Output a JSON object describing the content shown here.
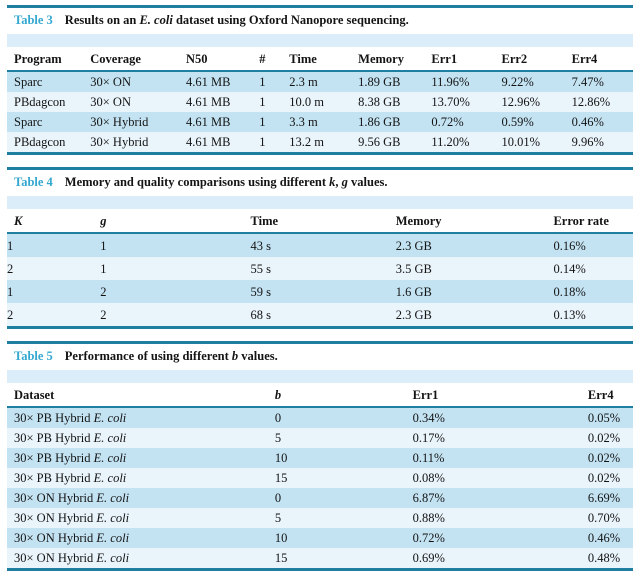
{
  "page": {
    "colors": {
      "rule": "#1e7fa0",
      "label_accent": "#35a8d0",
      "band_bg": "#daedf8",
      "row_blue": "#c3e3f3",
      "row_pale": "#eaf4fb",
      "text": "#141414",
      "page_bg": "#ffffff"
    }
  },
  "tables": [
    {
      "label": "Table 3",
      "caption": [
        {
          "t": "Results on an "
        },
        {
          "t": "E. coli",
          "i": true
        },
        {
          "t": " dataset using Oxford Nanopore sequencing."
        }
      ],
      "columns": [
        {
          "label": "Program",
          "width": 13.3
        },
        {
          "label": "Coverage",
          "width": 15.3
        },
        {
          "label": "N50",
          "width": 11.7
        },
        {
          "label": "#",
          "width": 4.8
        },
        {
          "label": "Time",
          "width": 11.0
        },
        {
          "label": "Memory",
          "width": 11.7
        },
        {
          "label": "Err1",
          "width": 11.2
        },
        {
          "label": "Err2",
          "width": 11.2
        },
        {
          "label": "Err4",
          "width": 9.8
        }
      ],
      "rows": [
        [
          "Sparc",
          "30× ON",
          "4.61 MB",
          "1",
          "2.3 m",
          "1.89 GB",
          "11.96%",
          "9.22%",
          "7.47%"
        ],
        [
          "PBdagcon",
          "30× ON",
          "4.61 MB",
          "1",
          "10.0 m",
          "8.38 GB",
          "13.70%",
          "12.96%",
          "12.86%"
        ],
        [
          "Sparc",
          "30× Hybrid",
          "4.61 MB",
          "1",
          "3.3 m",
          "1.86 GB",
          "0.72%",
          "0.59%",
          "0.46%"
        ],
        [
          "PBdagcon",
          "30× Hybrid",
          "4.61 MB",
          "1",
          "13.2 m",
          "9.56 GB",
          "11.20%",
          "10.01%",
          "9.96%"
        ]
      ]
    },
    {
      "label": "Table 4",
      "caption": [
        {
          "t": "Memory and quality comparisons using different "
        },
        {
          "t": "k",
          "i": true
        },
        {
          "t": ", "
        },
        {
          "t": "g",
          "i": true
        },
        {
          "t": " values."
        }
      ],
      "columns": [
        {
          "label": "K",
          "italic": true,
          "width": 14.9
        },
        {
          "label": "g",
          "italic": true,
          "width": 24.0
        },
        {
          "label": "Time",
          "width": 23.2
        },
        {
          "label": "Memory",
          "width": 25.2
        },
        {
          "label": "Error rate",
          "width": 12.7
        }
      ],
      "rows": [
        [
          "1",
          "1",
          "43 s",
          "2.3 GB",
          "0.16%"
        ],
        [
          "2",
          "1",
          "55 s",
          "3.5 GB",
          "0.14%"
        ],
        [
          "1",
          "2",
          "59 s",
          "1.6 GB",
          "0.18%"
        ],
        [
          "2",
          "2",
          "68 s",
          "2.3 GB",
          "0.13%"
        ]
      ]
    },
    {
      "label": "Table 5",
      "caption": [
        {
          "t": "Performance of using different "
        },
        {
          "t": "b",
          "i": true
        },
        {
          "t": " values."
        }
      ],
      "columns": [
        {
          "label": "Dataset",
          "width": 42.8
        },
        {
          "label": "b",
          "italic": true,
          "width": 22.0
        },
        {
          "label": "Err1",
          "width": 28.0
        },
        {
          "label": "Err4",
          "width": 7.2
        }
      ],
      "rows": [
        [
          [
            {
              "t": "30× PB Hybrid "
            },
            {
              "t": "E. coli",
              "i": true
            }
          ],
          "0",
          "0.34%",
          "0.05%"
        ],
        [
          [
            {
              "t": "30× PB Hybrid "
            },
            {
              "t": "E. coli",
              "i": true
            }
          ],
          "5",
          "0.17%",
          "0.02%"
        ],
        [
          [
            {
              "t": "30× PB Hybrid "
            },
            {
              "t": "E. coli",
              "i": true
            }
          ],
          "10",
          "0.11%",
          "0.02%"
        ],
        [
          [
            {
              "t": "30× PB Hybrid "
            },
            {
              "t": "E. coli",
              "i": true
            }
          ],
          "15",
          "0.08%",
          "0.02%"
        ],
        [
          [
            {
              "t": "30× ON Hybrid "
            },
            {
              "t": "E. coli",
              "i": true
            }
          ],
          "0",
          "6.87%",
          "6.69%"
        ],
        [
          [
            {
              "t": "30× ON Hybrid "
            },
            {
              "t": "E. coli",
              "i": true
            }
          ],
          "5",
          "0.88%",
          "0.70%"
        ],
        [
          [
            {
              "t": "30× ON Hybrid "
            },
            {
              "t": "E. coli",
              "i": true
            }
          ],
          "10",
          "0.72%",
          "0.46%"
        ],
        [
          [
            {
              "t": "30× ON Hybrid "
            },
            {
              "t": "E. coli",
              "i": true
            }
          ],
          "15",
          "0.69%",
          "0.48%"
        ]
      ]
    }
  ]
}
